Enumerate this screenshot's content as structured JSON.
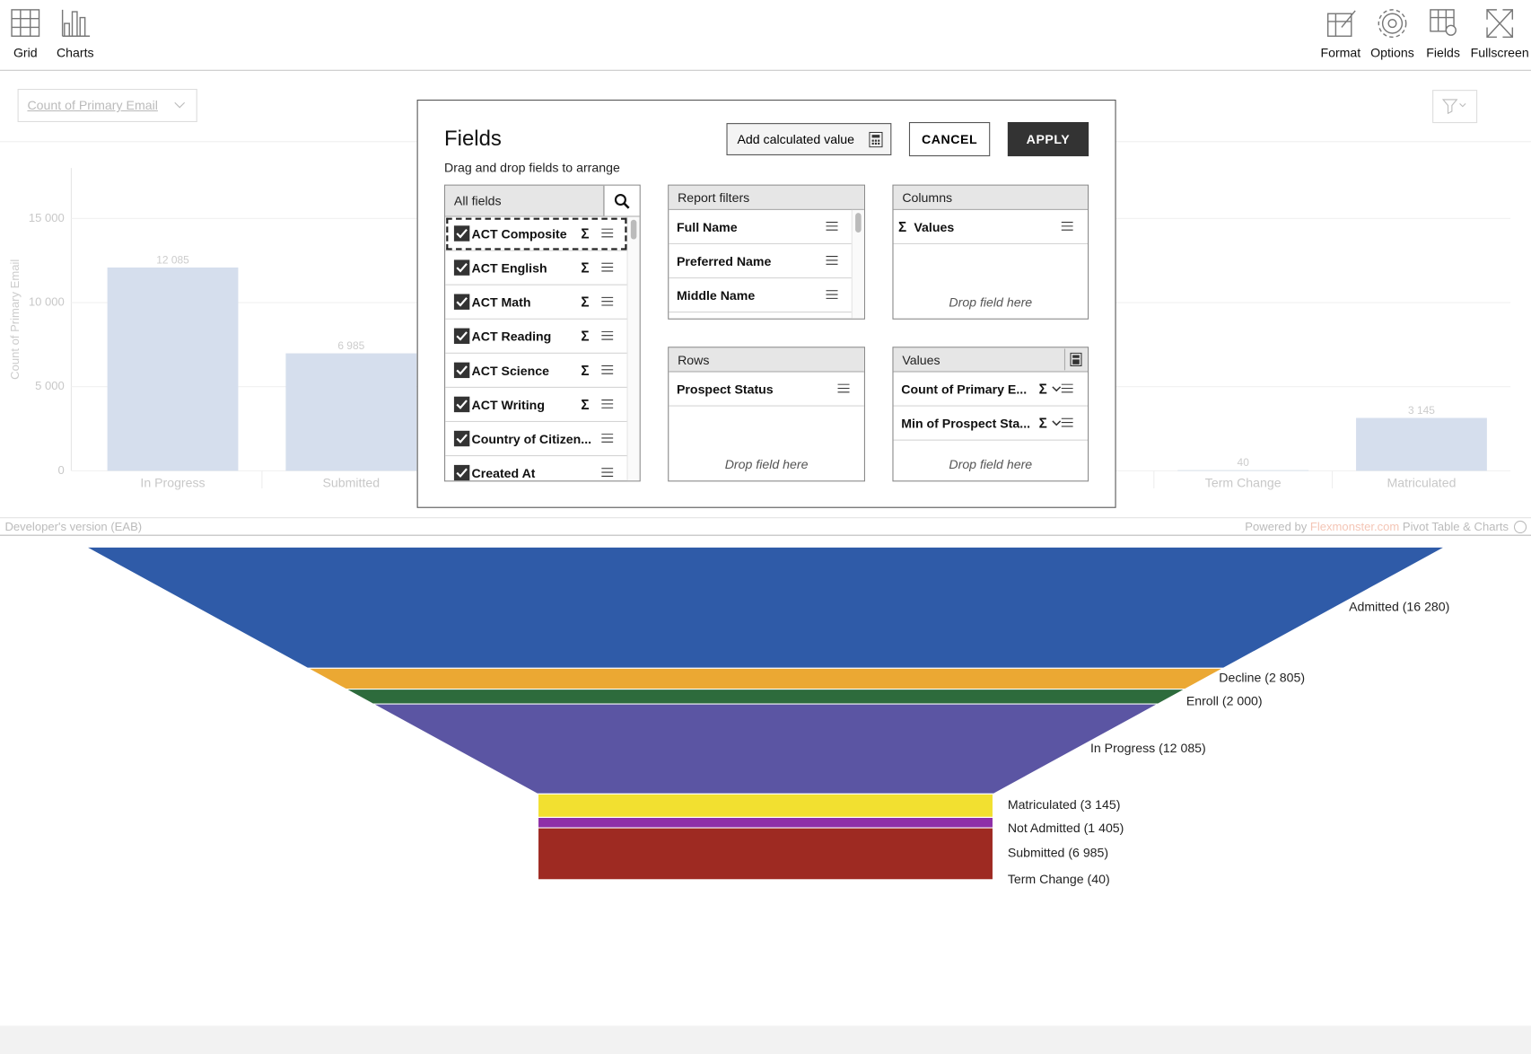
{
  "toolbar": {
    "left": [
      "Grid",
      "Charts"
    ],
    "right": [
      "Format",
      "Options",
      "Fields",
      "Fullscreen"
    ]
  },
  "measure_select": "Count of Primary Email",
  "bar_chart": {
    "type": "bar",
    "y_label": "Count of Primary Email",
    "categories": [
      "In Progress",
      "Submitted",
      null,
      null,
      null,
      null,
      "Term Change",
      "Matriculated"
    ],
    "values": [
      12085,
      6985,
      null,
      null,
      null,
      null,
      40,
      3145
    ],
    "value_labels": [
      "12 085",
      "6 985",
      null,
      null,
      null,
      null,
      "40",
      "3 145"
    ],
    "color": "#d5deed",
    "ylim": [
      0,
      18000
    ],
    "yticks": [
      0,
      {
        "value": 5000,
        "label": "5 000"
      },
      {
        "value": 10000,
        "label": "10 000"
      },
      {
        "value": 15000,
        "label": "15 000"
      }
    ],
    "grid": true
  },
  "footer": {
    "left": "Developer's version (EAB)",
    "powered": "Powered by",
    "brand": "Flexmonster.com",
    "product": "Pivot Table & Charts"
  },
  "funnel": {
    "type": "funnel",
    "labels": [
      "Admitted (16 280)",
      "Decline (2 805)",
      "Enroll (2 000)",
      "In Progress (12 085)",
      "Matriculated (3 145)",
      "Not Admitted (1 405)",
      "Submitted (6 985)",
      "Term Change (40)"
    ],
    "values": [
      16280,
      2805,
      2000,
      12085,
      3145,
      1405,
      6985,
      40
    ],
    "colors": [
      "#2f5ba8",
      "#eba833",
      "#2d6b3c",
      "#5b55a3",
      "#f2e030",
      "#8e2fa8",
      "#9e2a22",
      "#c8602a"
    ]
  },
  "dialog": {
    "title": "Fields",
    "subtitle": "Drag and drop fields to arrange",
    "add_calculated": "Add calculated value",
    "cancel": "CANCEL",
    "apply": "APPLY",
    "aggregate_icon": "Σ",
    "all_fields": {
      "title": "All fields",
      "items": [
        {
          "name": "ACT Composite",
          "aggregatable": true
        },
        {
          "name": "ACT English",
          "aggregatable": true
        },
        {
          "name": "ACT Math",
          "aggregatable": true
        },
        {
          "name": "ACT Reading",
          "aggregatable": true
        },
        {
          "name": "ACT Science",
          "aggregatable": true
        },
        {
          "name": "ACT Writing",
          "aggregatable": true
        },
        {
          "name": "Country of Citizen...",
          "aggregatable": false
        },
        {
          "name": "Created At",
          "aggregatable": false
        }
      ]
    },
    "report_filters": {
      "title": "Report filters",
      "items": [
        "Full Name",
        "Preferred Name",
        "Middle Name"
      ]
    },
    "columns": {
      "title": "Columns",
      "items": [
        "Values"
      ],
      "drop": "Drop field here"
    },
    "rows": {
      "title": "Rows",
      "items": [
        "Prospect Status"
      ],
      "drop": "Drop field here"
    },
    "values": {
      "title": "Values",
      "items": [
        "Count of Primary E...",
        "Min of Prospect Sta..."
      ],
      "drop": "Drop field here"
    }
  }
}
